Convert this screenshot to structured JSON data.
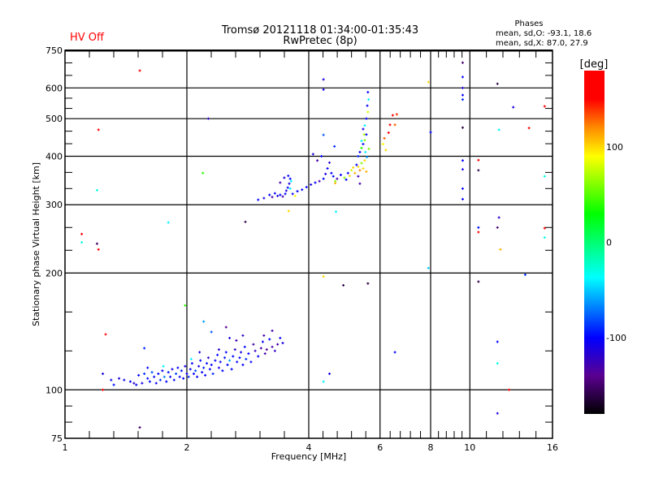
{
  "header": {
    "status": "HV Off",
    "title_line1": "Tromsø 20121118 01:34:00-01:35:43",
    "title_line2": "RwPretec (8p)",
    "stats_title": "Phases",
    "stats_o": "mean, sd,O: -93.1, 18.6",
    "stats_x": "mean, sd,X:  87.0, 27.9"
  },
  "colors": {
    "status": "#ff0000",
    "axes": "#000000"
  },
  "chart_data": {
    "type": "scatter",
    "title": "Tromsø 20121118 01:34:00-01:35:43",
    "subtitle": "RwPretec (8p)",
    "xlabel": "Frequency [MHz]",
    "ylabel": "Stationary phase Virtual Height [km]",
    "xscale": "log",
    "yscale": "log",
    "xlim": [
      1,
      16
    ],
    "ylim": [
      75,
      750
    ],
    "xticks": [
      1,
      2,
      4,
      6,
      8,
      10,
      16
    ],
    "xtick_labels": [
      "1",
      "2",
      "4",
      "6",
      "8",
      "10",
      "16"
    ],
    "yticks": [
      75,
      100,
      200,
      300,
      400,
      500,
      600,
      750
    ],
    "ytick_labels": [
      "75",
      "100",
      "200",
      "300",
      "400",
      "500",
      "600",
      "750"
    ],
    "grid": true,
    "colorbar": {
      "label": "[deg]",
      "range": [
        -180,
        180
      ],
      "ticks": [
        100,
        0,
        -100
      ],
      "tick_labels": [
        "100",
        "0",
        "-100"
      ],
      "stops": [
        [
          -180,
          "#000000"
        ],
        [
          -140,
          "#5a0090"
        ],
        [
          -100,
          "#0000ff"
        ],
        [
          -37,
          "#00ffff"
        ],
        [
          30,
          "#00ff00"
        ],
        [
          90,
          "#ffff00"
        ],
        [
          120,
          "#ff8c00"
        ],
        [
          150,
          "#ff0000"
        ],
        [
          180,
          "#ff0000"
        ]
      ]
    },
    "point_fields": [
      "frequency_mhz",
      "height_km",
      "phase_deg"
    ],
    "points": [
      [
        1.3,
        106,
        -100
      ],
      [
        1.32,
        103,
        -95
      ],
      [
        1.36,
        107,
        -110
      ],
      [
        1.4,
        106,
        -105
      ],
      [
        1.45,
        105,
        -100
      ],
      [
        1.48,
        104,
        -120
      ],
      [
        1.52,
        109,
        -100
      ],
      [
        1.55,
        104,
        -110
      ],
      [
        1.57,
        110,
        -90
      ],
      [
        1.6,
        107,
        -95
      ],
      [
        1.62,
        105,
        -100
      ],
      [
        1.64,
        111,
        -80
      ],
      [
        1.66,
        108,
        -100
      ],
      [
        1.68,
        104,
        -105
      ],
      [
        1.7,
        110,
        -100
      ],
      [
        1.72,
        106,
        -90
      ],
      [
        1.74,
        112,
        -100
      ],
      [
        1.76,
        108,
        -70
      ],
      [
        1.78,
        105,
        -100
      ],
      [
        1.8,
        111,
        -95
      ],
      [
        1.82,
        108,
        -100
      ],
      [
        1.84,
        113,
        -110
      ],
      [
        1.86,
        106,
        -100
      ],
      [
        1.88,
        110,
        -85
      ],
      [
        1.9,
        114,
        -100
      ],
      [
        1.92,
        108,
        -100
      ],
      [
        1.94,
        112,
        -95
      ],
      [
        1.96,
        107,
        -100
      ],
      [
        1.98,
        115,
        -110
      ],
      [
        2.0,
        110,
        -100
      ],
      [
        2.02,
        108,
        -90
      ],
      [
        2.04,
        113,
        -100
      ],
      [
        2.06,
        117,
        -100
      ],
      [
        2.08,
        110,
        -100
      ],
      [
        2.1,
        112,
        -80
      ],
      [
        2.12,
        108,
        -100
      ],
      [
        2.14,
        115,
        -110
      ],
      [
        2.16,
        119,
        -100
      ],
      [
        2.18,
        111,
        -100
      ],
      [
        2.2,
        114,
        -95
      ],
      [
        2.22,
        109,
        -100
      ],
      [
        2.24,
        117,
        -100
      ],
      [
        2.26,
        121,
        -120
      ],
      [
        2.28,
        113,
        -100
      ],
      [
        2.3,
        116,
        -100
      ],
      [
        2.32,
        110,
        -90
      ],
      [
        2.35,
        119,
        -100
      ],
      [
        2.38,
        123,
        -100
      ],
      [
        2.4,
        114,
        -110
      ],
      [
        2.42,
        118,
        -100
      ],
      [
        2.45,
        112,
        -100
      ],
      [
        2.48,
        121,
        -95
      ],
      [
        2.5,
        125,
        -100
      ],
      [
        2.52,
        116,
        -100
      ],
      [
        2.55,
        119,
        -60
      ],
      [
        2.58,
        113,
        -100
      ],
      [
        2.6,
        122,
        -100
      ],
      [
        2.63,
        127,
        -120
      ],
      [
        2.66,
        118,
        -100
      ],
      [
        2.7,
        121,
        -100
      ],
      [
        2.72,
        125,
        -110
      ],
      [
        2.75,
        116,
        -100
      ],
      [
        2.78,
        129,
        -100
      ],
      [
        2.8,
        120,
        -90
      ],
      [
        2.84,
        124,
        -100
      ],
      [
        2.88,
        118,
        -100
      ],
      [
        2.92,
        131,
        -130
      ],
      [
        2.95,
        126,
        -120
      ],
      [
        3.0,
        122,
        -100
      ],
      [
        3.05,
        128,
        -130
      ],
      [
        3.08,
        133,
        -100
      ],
      [
        3.12,
        124,
        -130
      ],
      [
        3.15,
        127,
        -140
      ],
      [
        3.2,
        135,
        -100
      ],
      [
        3.25,
        129,
        -130
      ],
      [
        3.3,
        126,
        -120
      ],
      [
        3.35,
        131,
        -130
      ],
      [
        3.4,
        136,
        -100
      ],
      [
        3.45,
        132,
        -110
      ],
      [
        2.3,
        141,
        -80
      ],
      [
        2.55,
        136,
        -110
      ],
      [
        2.75,
        138,
        -120
      ],
      [
        1.6,
        114,
        -100
      ],
      [
        1.75,
        115,
        -40
      ],
      [
        2.05,
        120,
        -40
      ],
      [
        2.15,
        125,
        -110
      ],
      [
        2.4,
        127,
        -120
      ],
      [
        2.65,
        134,
        -130
      ],
      [
        3.1,
        138,
        -130
      ],
      [
        3.25,
        142,
        -130
      ],
      [
        1.24,
        110,
        -110
      ],
      [
        1.5,
        103,
        -100
      ],
      [
        2.2,
        150,
        -60
      ],
      [
        2.5,
        145,
        -140
      ],
      [
        3.0,
        309,
        -100
      ],
      [
        3.1,
        312,
        -110
      ],
      [
        3.2,
        318,
        -100
      ],
      [
        3.25,
        314,
        -130
      ],
      [
        3.3,
        321,
        -100
      ],
      [
        3.35,
        316,
        -110
      ],
      [
        3.4,
        318,
        -100
      ],
      [
        3.45,
        315,
        -130
      ],
      [
        3.5,
        320,
        -100
      ],
      [
        3.52,
        326,
        -110
      ],
      [
        3.55,
        332,
        -100
      ],
      [
        3.58,
        340,
        -110
      ],
      [
        3.6,
        350,
        -100
      ],
      [
        3.62,
        345,
        -40
      ],
      [
        3.56,
        356,
        -100
      ],
      [
        3.48,
        352,
        -110
      ],
      [
        3.4,
        342,
        -130
      ],
      [
        3.6,
        330,
        -40
      ],
      [
        3.65,
        320,
        -100
      ],
      [
        3.7,
        316,
        90
      ],
      [
        3.75,
        325,
        -100
      ],
      [
        3.85,
        328,
        -100
      ],
      [
        3.95,
        333,
        -100
      ],
      [
        4.05,
        338,
        -110
      ],
      [
        4.15,
        342,
        -100
      ],
      [
        4.25,
        345,
        -130
      ],
      [
        4.35,
        350,
        -100
      ],
      [
        4.4,
        360,
        -110
      ],
      [
        4.45,
        372,
        -100
      ],
      [
        4.5,
        385,
        -120
      ],
      [
        4.55,
        362,
        -100
      ],
      [
        4.6,
        355,
        -100
      ],
      [
        4.65,
        345,
        60
      ],
      [
        4.7,
        350,
        -130
      ],
      [
        4.8,
        358,
        -100
      ],
      [
        4.9,
        352,
        60
      ],
      [
        4.95,
        348,
        -100
      ],
      [
        5.0,
        362,
        -100
      ],
      [
        5.05,
        356,
        100
      ],
      [
        5.1,
        368,
        80
      ],
      [
        5.15,
        374,
        100
      ],
      [
        5.2,
        362,
        110
      ],
      [
        5.25,
        380,
        -100
      ],
      [
        5.3,
        376,
        100
      ],
      [
        5.35,
        368,
        120
      ],
      [
        5.4,
        384,
        60
      ],
      [
        5.45,
        372,
        100
      ],
      [
        5.5,
        390,
        100
      ],
      [
        5.55,
        365,
        110
      ],
      [
        5.3,
        400,
        -90
      ],
      [
        5.35,
        410,
        -100
      ],
      [
        5.4,
        420,
        40
      ],
      [
        5.45,
        430,
        -100
      ],
      [
        5.5,
        440,
        60
      ],
      [
        5.55,
        455,
        -100
      ],
      [
        5.45,
        470,
        -110
      ],
      [
        5.5,
        480,
        -40
      ],
      [
        5.55,
        500,
        -100
      ],
      [
        5.6,
        520,
        80
      ],
      [
        5.58,
        540,
        -100
      ],
      [
        5.62,
        560,
        -40
      ],
      [
        5.6,
        585,
        -100
      ],
      [
        5.52,
        410,
        -40
      ],
      [
        5.57,
        398,
        -60
      ],
      [
        5.4,
        438,
        -40
      ],
      [
        5.63,
        418,
        60
      ],
      [
        5.48,
        455,
        70
      ],
      [
        4.65,
        341,
        110
      ],
      [
        5.3,
        355,
        -130
      ],
      [
        5.35,
        340,
        -130
      ],
      [
        4.3,
        400,
        -100
      ],
      [
        4.2,
        390,
        -130
      ],
      [
        4.1,
        405,
        -110
      ],
      [
        6.1,
        430,
        90
      ],
      [
        6.15,
        445,
        130
      ],
      [
        6.3,
        460,
        150
      ],
      [
        6.35,
        482,
        160
      ],
      [
        6.45,
        510,
        150
      ],
      [
        6.2,
        415,
        100
      ],
      [
        1.53,
        665,
        150
      ],
      [
        1.21,
        468,
        150
      ],
      [
        1.2,
        327,
        -30
      ],
      [
        1.1,
        252,
        150
      ],
      [
        1.1,
        240,
        -30
      ],
      [
        1.2,
        238,
        -150
      ],
      [
        1.21,
        230,
        170
      ],
      [
        1.8,
        270,
        -40
      ],
      [
        2.26,
        500,
        -120
      ],
      [
        2.19,
        362,
        40
      ],
      [
        2.79,
        271,
        -160
      ],
      [
        4.35,
        631,
        -110
      ],
      [
        4.35,
        594,
        -110
      ],
      [
        4.35,
        454,
        -80
      ],
      [
        4.63,
        424,
        -90
      ],
      [
        4.67,
        288,
        -40
      ],
      [
        4.35,
        196,
        100
      ],
      [
        4.87,
        186,
        -160
      ],
      [
        4.5,
        110,
        -110
      ],
      [
        4.35,
        105,
        -40
      ],
      [
        5.6,
        188,
        -160
      ],
      [
        6.53,
        125,
        -100
      ],
      [
        6.6,
        513,
        140
      ],
      [
        6.53,
        482,
        130
      ],
      [
        8.0,
        461,
        -100
      ],
      [
        7.9,
        621,
        100
      ],
      [
        7.9,
        206,
        -50
      ],
      [
        9.6,
        697,
        -150
      ],
      [
        9.6,
        640,
        -100
      ],
      [
        9.6,
        600,
        -110
      ],
      [
        9.6,
        575,
        -100
      ],
      [
        9.6,
        560,
        -90
      ],
      [
        9.6,
        474,
        -160
      ],
      [
        9.6,
        390,
        -100
      ],
      [
        9.6,
        370,
        -110
      ],
      [
        9.6,
        330,
        -100
      ],
      [
        9.6,
        310,
        -100
      ],
      [
        10.5,
        391,
        170
      ],
      [
        10.5,
        368,
        -160
      ],
      [
        10.5,
        262,
        -100
      ],
      [
        10.5,
        255,
        150
      ],
      [
        10.5,
        190,
        -160
      ],
      [
        11.7,
        615,
        -160
      ],
      [
        11.8,
        468,
        -40
      ],
      [
        11.8,
        278,
        -120
      ],
      [
        11.7,
        262,
        -150
      ],
      [
        11.9,
        230,
        110
      ],
      [
        11.7,
        133,
        -100
      ],
      [
        11.7,
        117,
        -30
      ],
      [
        11.7,
        87,
        -110
      ],
      [
        12.5,
        100,
        150
      ],
      [
        12.8,
        535,
        -110
      ],
      [
        14.0,
        473,
        150
      ],
      [
        15.3,
        538,
        150
      ],
      [
        15.3,
        355,
        -30
      ],
      [
        15.3,
        261,
        150
      ],
      [
        15.3,
        247,
        -30
      ],
      [
        13.7,
        198,
        -90
      ],
      [
        1.26,
        139,
        150
      ],
      [
        1.57,
        128,
        -90
      ],
      [
        1.98,
        165,
        40
      ],
      [
        1.53,
        80,
        -150
      ],
      [
        1.24,
        100,
        150
      ],
      [
        3.57,
        289,
        100
      ]
    ]
  }
}
